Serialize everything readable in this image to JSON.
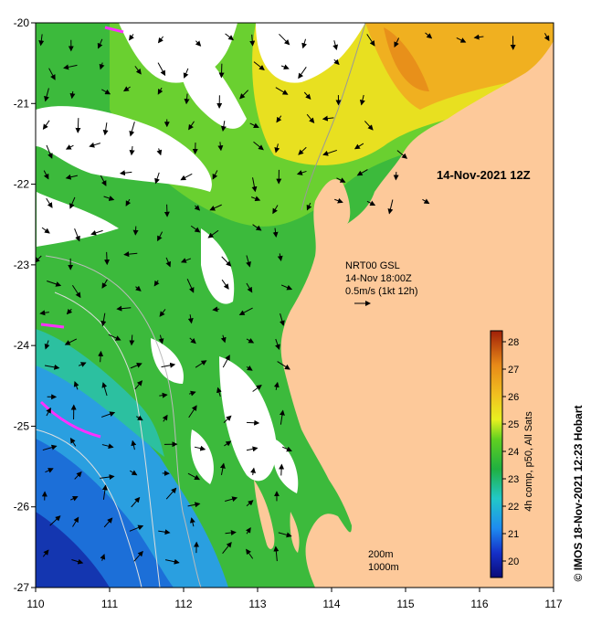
{
  "map": {
    "timestamp": "14-Nov-2021 12Z",
    "current_source": "NRT00 GSL",
    "current_time": "14-Nov 18:00Z",
    "current_scale": "0.5m/s (1kt 12h)",
    "depth_label_1": "200m",
    "depth_label_2": "1000m",
    "colorbar_title": "4h comp, p50, All Sats",
    "credit": "© IMOS 18-Nov-2021 12:23 Hobart",
    "colors": {
      "land": "#fdc99a",
      "cloud": "#ffffff",
      "coast": "#999999",
      "arrow": "#000000"
    }
  },
  "axes": {
    "x_ticks": [
      "110",
      "111",
      "112",
      "113",
      "114",
      "115",
      "116",
      "117"
    ],
    "y_ticks": [
      "-20",
      "-21",
      "-22",
      "-23",
      "-24",
      "-25",
      "-26",
      "-27"
    ],
    "xlim": [
      110,
      117
    ],
    "ylim": [
      -27,
      -20
    ]
  },
  "colorbar": {
    "min": 19.4,
    "max": 28.4,
    "ticks": [
      "20",
      "21",
      "22",
      "23",
      "24",
      "25",
      "26",
      "27",
      "28"
    ]
  }
}
